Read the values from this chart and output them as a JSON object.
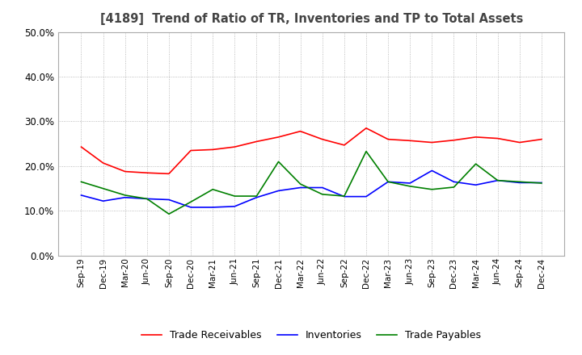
{
  "title": "[4189]  Trend of Ratio of TR, Inventories and TP to Total Assets",
  "x_labels": [
    "Sep-19",
    "Dec-19",
    "Mar-20",
    "Jun-20",
    "Sep-20",
    "Dec-20",
    "Mar-21",
    "Jun-21",
    "Sep-21",
    "Dec-21",
    "Mar-22",
    "Jun-22",
    "Sep-22",
    "Dec-22",
    "Mar-23",
    "Jun-23",
    "Sep-23",
    "Dec-23",
    "Mar-24",
    "Jun-24",
    "Sep-24",
    "Dec-24"
  ],
  "trade_receivables": [
    0.243,
    0.207,
    0.188,
    0.185,
    0.183,
    0.235,
    0.237,
    0.243,
    0.255,
    0.265,
    0.278,
    0.26,
    0.247,
    0.285,
    0.26,
    0.257,
    0.253,
    0.258,
    0.265,
    0.262,
    0.253,
    0.26
  ],
  "inventories": [
    0.135,
    0.122,
    0.13,
    0.127,
    0.125,
    0.108,
    0.108,
    0.11,
    0.13,
    0.145,
    0.152,
    0.152,
    0.132,
    0.132,
    0.165,
    0.162,
    0.19,
    0.165,
    0.158,
    0.168,
    0.163,
    0.163
  ],
  "trade_payables": [
    0.165,
    0.15,
    0.135,
    0.127,
    0.093,
    0.12,
    0.148,
    0.133,
    0.133,
    0.21,
    0.16,
    0.137,
    0.133,
    0.233,
    0.165,
    0.155,
    0.148,
    0.153,
    0.205,
    0.168,
    0.165,
    0.162
  ],
  "tr_color": "#ff0000",
  "inv_color": "#0000ff",
  "tp_color": "#008000",
  "ylim": [
    0.0,
    0.5
  ],
  "yticks": [
    0.0,
    0.1,
    0.2,
    0.3,
    0.4,
    0.5
  ],
  "legend_labels": [
    "Trade Receivables",
    "Inventories",
    "Trade Payables"
  ],
  "background_color": "#ffffff",
  "grid_color": "#aaaaaa",
  "title_color": "#444444"
}
